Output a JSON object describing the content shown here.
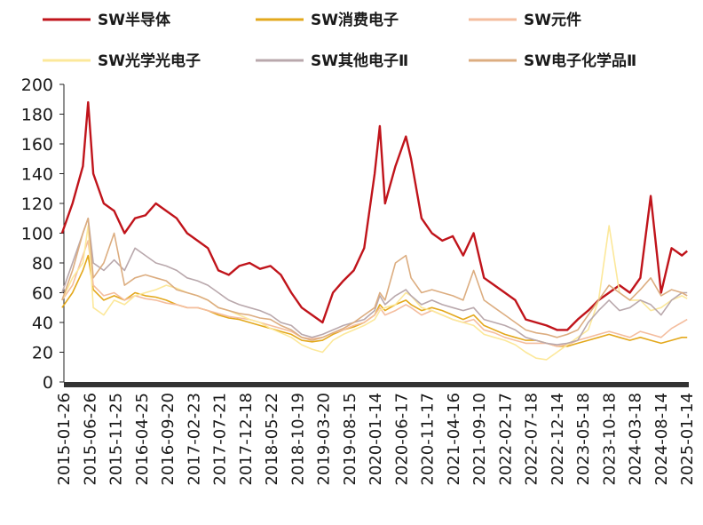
{
  "chart_data": {
    "type": "line",
    "title": "",
    "xlabel": "",
    "ylabel": "",
    "ylim": [
      0,
      200
    ],
    "yticks": [
      0,
      20,
      40,
      60,
      80,
      100,
      120,
      140,
      160,
      180,
      200
    ],
    "legend_position": "top",
    "grid": false,
    "x_tick_labels": [
      "2015-01-26",
      "2015-06-26",
      "2015-11-25",
      "2016-04-25",
      "2016-09-20",
      "2017-02-23",
      "2017-07-21",
      "2017-12-18",
      "2018-05-22",
      "2018-10-19",
      "2019-03-20",
      "2019-08-15",
      "2020-01-14",
      "2020-06-17",
      "2020-11-17",
      "2021-04-16",
      "2021-09-10",
      "2022-02-17",
      "2022-07-18",
      "2022-12-14",
      "2023-05-18",
      "2023-10-18",
      "2024-03-18",
      "2024-08-14",
      "2025-01-14"
    ],
    "x": [
      "2015-01",
      "2015-03",
      "2015-05",
      "2015-06",
      "2015-07",
      "2015-09",
      "2015-11",
      "2016-01",
      "2016-03",
      "2016-05",
      "2016-07",
      "2016-09",
      "2016-11",
      "2017-01",
      "2017-03",
      "2017-05",
      "2017-07",
      "2017-09",
      "2017-11",
      "2018-01",
      "2018-03",
      "2018-05",
      "2018-07",
      "2018-09",
      "2018-11",
      "2019-01",
      "2019-03",
      "2019-05",
      "2019-07",
      "2019-09",
      "2019-11",
      "2020-01",
      "2020-02",
      "2020-03",
      "2020-05",
      "2020-07",
      "2020-08",
      "2020-10",
      "2020-12",
      "2021-02",
      "2021-04",
      "2021-06",
      "2021-08",
      "2021-10",
      "2021-12",
      "2022-02",
      "2022-04",
      "2022-06",
      "2022-08",
      "2022-10",
      "2022-12",
      "2023-02",
      "2023-04",
      "2023-06",
      "2023-08",
      "2023-10",
      "2023-12",
      "2024-02",
      "2024-04",
      "2024-06",
      "2024-08",
      "2024-10",
      "2024-12",
      "2025-01"
    ],
    "series": [
      {
        "name": "SW半导体",
        "color": "#c0141b",
        "width": 2.4,
        "values": [
          100,
          120,
          145,
          188,
          140,
          120,
          115,
          100,
          110,
          112,
          120,
          115,
          110,
          100,
          95,
          90,
          75,
          72,
          78,
          80,
          76,
          78,
          72,
          60,
          50,
          45,
          40,
          60,
          68,
          75,
          90,
          140,
          172,
          120,
          145,
          165,
          150,
          110,
          100,
          95,
          98,
          85,
          100,
          70,
          65,
          60,
          55,
          42,
          40,
          38,
          35,
          35,
          42,
          48,
          55,
          60,
          65,
          60,
          70,
          125,
          60,
          90,
          85,
          88
        ]
      },
      {
        "name": "SW消费电子",
        "color": "#e3a81c",
        "width": 1.6,
        "values": [
          50,
          60,
          75,
          85,
          62,
          55,
          58,
          55,
          60,
          58,
          57,
          55,
          52,
          50,
          50,
          48,
          45,
          43,
          42,
          40,
          38,
          36,
          34,
          32,
          28,
          27,
          28,
          32,
          35,
          37,
          40,
          45,
          52,
          48,
          52,
          55,
          52,
          48,
          50,
          48,
          45,
          42,
          45,
          38,
          35,
          32,
          30,
          28,
          28,
          26,
          24,
          24,
          26,
          28,
          30,
          32,
          30,
          28,
          30,
          28,
          26,
          28,
          30,
          30
        ]
      },
      {
        "name": "SW元件",
        "color": "#f4bd9e",
        "width": 1.6,
        "values": [
          55,
          65,
          85,
          95,
          65,
          58,
          60,
          55,
          58,
          56,
          55,
          53,
          52,
          50,
          50,
          48,
          46,
          44,
          43,
          42,
          40,
          38,
          36,
          34,
          30,
          29,
          30,
          33,
          35,
          38,
          40,
          45,
          50,
          45,
          48,
          52,
          50,
          45,
          48,
          45,
          42,
          40,
          42,
          35,
          33,
          30,
          28,
          26,
          26,
          26,
          24,
          25,
          28,
          30,
          32,
          34,
          32,
          30,
          34,
          32,
          30,
          36,
          40,
          42
        ]
      },
      {
        "name": "SW光学光电子",
        "color": "#fce89a",
        "width": 1.6,
        "values": [
          55,
          70,
          80,
          105,
          50,
          45,
          55,
          52,
          58,
          60,
          62,
          65,
          63,
          60,
          58,
          55,
          50,
          48,
          45,
          42,
          40,
          36,
          33,
          30,
          25,
          22,
          20,
          28,
          32,
          35,
          38,
          42,
          48,
          50,
          52,
          60,
          58,
          50,
          48,
          45,
          42,
          40,
          38,
          32,
          30,
          28,
          25,
          20,
          16,
          15,
          20,
          25,
          30,
          35,
          55,
          105,
          60,
          55,
          55,
          48,
          50,
          55,
          58,
          56
        ]
      },
      {
        "name": "SW其他电子Ⅱ",
        "color": "#b9a8ac",
        "width": 1.6,
        "values": [
          60,
          80,
          100,
          110,
          80,
          75,
          82,
          75,
          90,
          85,
          80,
          78,
          75,
          70,
          68,
          65,
          60,
          55,
          52,
          50,
          48,
          45,
          40,
          38,
          32,
          30,
          32,
          35,
          38,
          40,
          42,
          48,
          58,
          52,
          58,
          62,
          58,
          52,
          55,
          52,
          50,
          48,
          50,
          42,
          40,
          38,
          35,
          30,
          28,
          26,
          25,
          26,
          28,
          40,
          48,
          55,
          48,
          50,
          55,
          52,
          45,
          55,
          60,
          60
        ]
      },
      {
        "name": "SW电子化学品Ⅱ",
        "color": "#dcad80",
        "width": 1.6,
        "values": [
          55,
          75,
          100,
          110,
          70,
          80,
          100,
          65,
          70,
          72,
          70,
          68,
          62,
          60,
          58,
          55,
          50,
          48,
          46,
          45,
          43,
          42,
          38,
          35,
          30,
          28,
          30,
          33,
          36,
          40,
          45,
          50,
          60,
          55,
          80,
          85,
          70,
          60,
          62,
          60,
          58,
          55,
          75,
          55,
          50,
          45,
          40,
          35,
          33,
          32,
          30,
          32,
          35,
          45,
          55,
          65,
          60,
          55,
          62,
          70,
          58,
          62,
          60,
          58
        ]
      }
    ]
  }
}
